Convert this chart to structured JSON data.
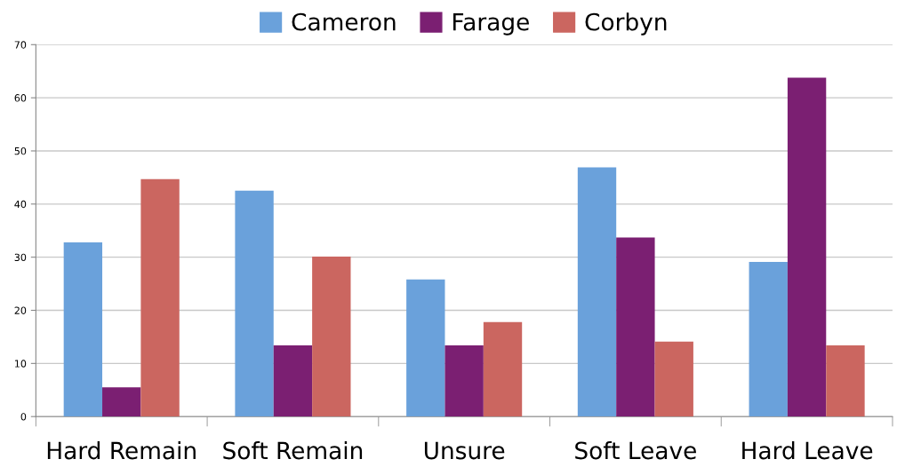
{
  "chart_data": {
    "type": "bar",
    "categories": [
      "Hard Remain",
      "Soft Remain",
      "Unsure",
      "Soft Leave",
      "Hard Leave"
    ],
    "series": [
      {
        "name": "Cameron",
        "color": "#6aa1db",
        "values": [
          32.8,
          42.5,
          25.8,
          46.9,
          29.1
        ]
      },
      {
        "name": "Farage",
        "color": "#7b1f72",
        "values": [
          5.5,
          13.4,
          13.4,
          33.7,
          63.8
        ]
      },
      {
        "name": "Corbyn",
        "color": "#cb6660",
        "values": [
          44.7,
          30.1,
          17.8,
          14.1,
          13.4
        ]
      }
    ],
    "ylim": [
      0,
      70
    ],
    "yticks": [
      0,
      10,
      20,
      30,
      40,
      50,
      60,
      70
    ],
    "grid": "y",
    "legend": "top"
  }
}
